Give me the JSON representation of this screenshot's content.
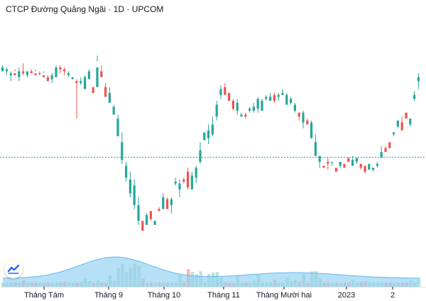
{
  "title": "CTCP Đường Quảng Ngãi · 1D · UPCOM",
  "colors": {
    "up": "#26a69a",
    "down": "#ef5350",
    "up_volume": "#bfe3d6",
    "down_volume": "#f6b9b6",
    "volume_ma_fill": "#8fd0ef",
    "volume_ma_line": "#64b5f6",
    "price_line": "#26a69a"
  },
  "chart_data": {
    "type": "candlestick",
    "title": "CTCP Đường Quảng Ngãi · 1D · UPCOM",
    "x_ticks": [
      "Tháng Tám",
      "Tháng 9",
      "Tháng 10",
      "Tháng 11",
      "Tháng Mười hai",
      "2023",
      "2"
    ],
    "price_axis": "none shown",
    "current_price_line": "dotted horizontal line",
    "volume_panel": true,
    "volume_moving_average": true,
    "grid": false,
    "legend": "none",
    "price_series": [
      [
        150,
        152,
        153,
        151
      ],
      [
        150,
        151,
        148,
        152
      ],
      [
        148,
        149,
        145,
        150
      ],
      [
        149,
        148,
        151,
        150
      ],
      [
        147,
        150,
        145,
        152
      ],
      [
        150,
        149,
        154,
        148
      ],
      [
        148,
        150,
        149,
        147
      ],
      [
        150,
        149,
        149,
        151
      ],
      [
        149,
        148,
        151,
        150
      ],
      [
        149,
        149,
        150,
        148
      ],
      [
        148,
        147,
        149,
        150
      ],
      [
        147,
        145,
        146,
        148
      ],
      [
        146,
        148,
        144,
        149
      ],
      [
        147,
        152,
        150,
        153
      ],
      [
        152,
        151,
        149,
        153
      ],
      [
        151,
        150,
        152,
        148
      ],
      [
        148,
        149,
        147,
        150
      ],
      [
        146,
        147,
        146,
        147
      ],
      [
        145,
        144,
        126,
        146
      ],
      [
        144,
        145,
        147,
        143
      ],
      [
        141,
        147,
        148,
        145
      ],
      [
        146,
        150,
        151,
        149
      ],
      [
        142,
        139,
        140,
        141
      ],
      [
        142,
        152,
        155,
        158
      ],
      [
        150,
        147,
        148,
        153
      ],
      [
        142,
        137,
        138,
        144
      ],
      [
        134,
        139,
        142,
        135
      ],
      [
        128,
        132,
        133,
        130
      ],
      [
        117,
        126,
        128,
        117
      ],
      [
        105,
        114,
        119,
        103
      ],
      [
        96,
        102,
        104,
        94
      ],
      [
        88,
        95,
        99,
        86
      ],
      [
        82,
        92,
        95,
        80
      ],
      [
        74,
        82,
        86,
        72
      ],
      [
        74,
        69,
        74,
        70
      ],
      [
        72,
        77,
        76,
        78
      ],
      [
        79,
        75,
        74,
        79
      ],
      [
        72,
        74,
        74,
        72
      ],
      [
        80,
        79,
        79,
        81
      ],
      [
        80,
        86,
        84,
        88
      ],
      [
        85,
        80,
        81,
        86
      ],
      [
        82,
        85,
        78,
        86
      ],
      [
        93,
        94,
        92,
        96
      ],
      [
        90,
        93,
        95,
        86
      ],
      [
        95,
        94,
        96,
        93
      ],
      [
        99,
        91,
        101,
        90
      ],
      [
        90,
        97,
        99,
        90
      ],
      [
        96,
        101,
        102,
        93
      ],
      [
        104,
        110,
        114,
        103
      ],
      [
        115,
        119,
        117,
        117
      ],
      [
        116,
        120,
        123,
        113
      ],
      [
        118,
        123,
        127,
        117
      ],
      [
        127,
        133,
        135,
        125
      ],
      [
        138,
        141,
        143,
        136
      ],
      [
        142,
        138,
        140,
        144
      ],
      [
        139,
        135,
        137,
        139
      ],
      [
        135,
        131,
        130,
        136
      ],
      [
        130,
        134,
        136,
        128
      ],
      [
        127,
        128,
        129,
        128
      ],
      [
        128,
        127,
        129,
        126
      ],
      [
        130,
        131,
        132,
        129
      ],
      [
        130,
        132,
        134,
        129
      ],
      [
        131,
        136,
        137,
        129
      ],
      [
        130,
        135,
        132,
        136
      ],
      [
        136,
        137,
        135,
        138
      ],
      [
        135,
        137,
        139,
        137
      ],
      [
        138,
        135,
        139,
        134
      ],
      [
        137,
        138,
        135,
        139
      ],
      [
        138,
        139,
        141,
        138
      ],
      [
        133,
        138,
        139,
        134
      ],
      [
        134,
        136,
        137,
        133
      ],
      [
        130,
        133,
        134,
        129
      ],
      [
        129,
        127,
        128,
        125
      ],
      [
        124,
        129,
        130,
        121
      ],
      [
        125,
        123,
        124,
        126
      ],
      [
        116,
        124,
        125,
        116
      ],
      [
        107,
        114,
        118,
        108
      ],
      [
        104,
        107,
        107,
        101
      ],
      [
        102,
        101,
        102,
        101
      ],
      [
        104,
        103,
        100,
        106
      ],
      [
        104,
        104,
        102,
        104
      ],
      [
        101,
        99,
        102,
        102
      ],
      [
        102,
        104,
        103,
        101
      ],
      [
        103,
        101,
        102,
        102
      ],
      [
        106,
        104,
        106,
        106
      ],
      [
        102,
        105,
        107,
        102
      ],
      [
        104,
        106,
        103,
        105
      ],
      [
        103,
        101,
        103,
        100
      ],
      [
        102,
        99,
        101,
        98
      ],
      [
        100,
        103,
        101,
        101
      ],
      [
        100,
        101,
        99,
        101
      ],
      [
        102,
        103,
        104,
        101
      ],
      [
        106,
        109,
        108,
        112
      ],
      [
        111,
        109,
        111,
        112
      ],
      [
        114,
        111,
        111,
        113
      ],
      [
        118,
        119,
        117,
        118
      ],
      [
        122,
        125,
        121,
        123
      ],
      [
        124,
        120,
        123,
        127
      ],
      [
        129,
        126,
        127,
        129
      ],
      [
        123,
        126,
        126,
        122
      ],
      [
        136,
        138,
        135,
        140
      ],
      [
        145,
        147,
        149,
        141
      ]
    ]
  }
}
